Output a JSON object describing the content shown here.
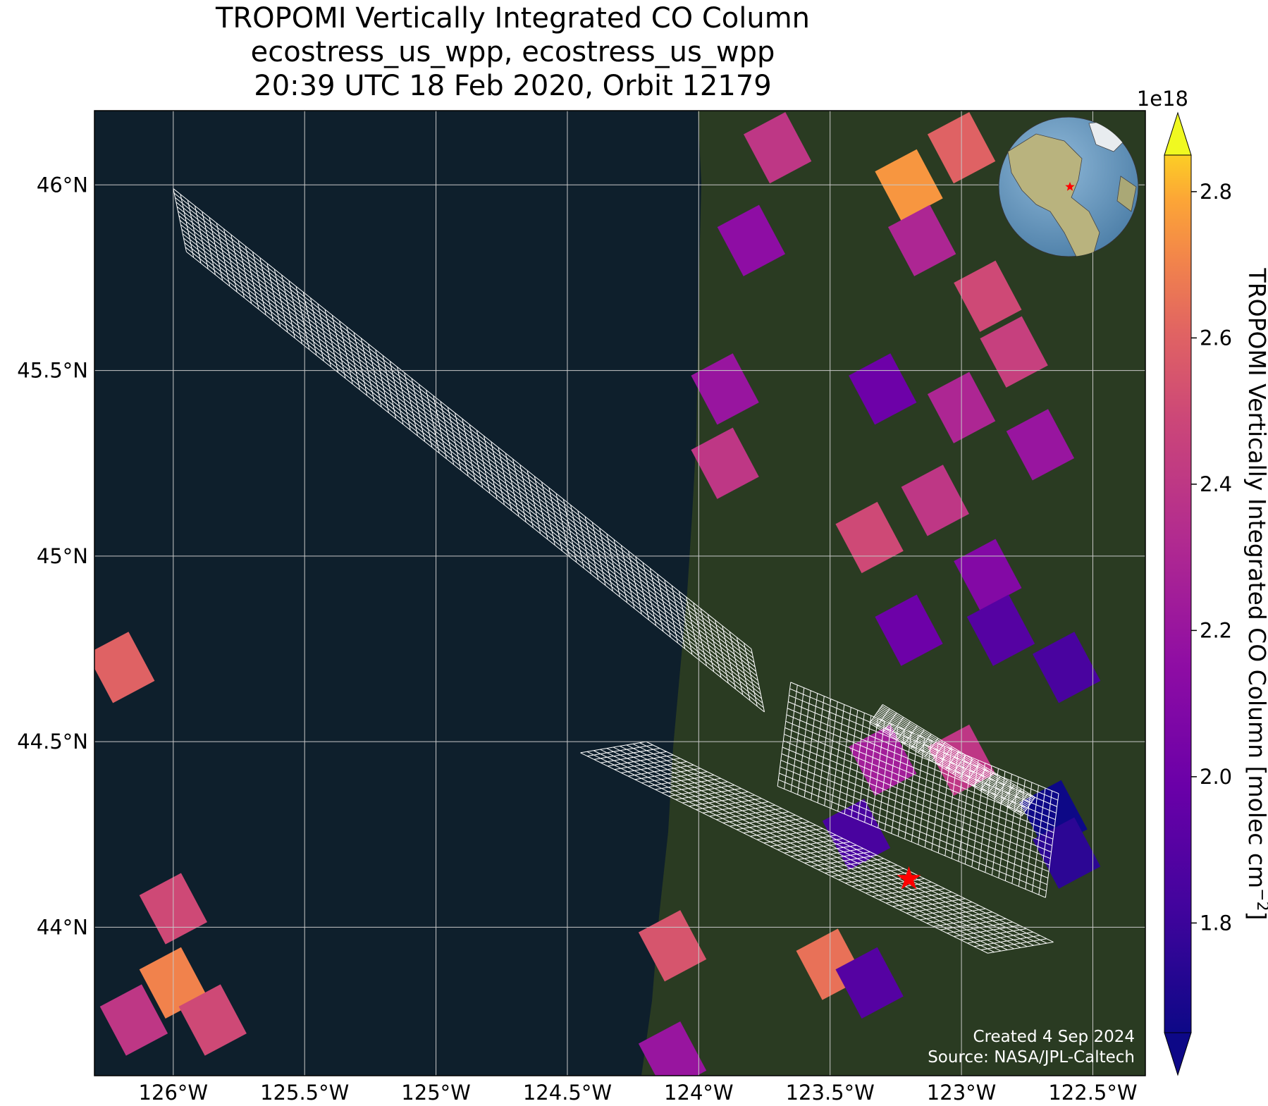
{
  "title": {
    "line1": "TROPOMI Vertically Integrated CO Column",
    "line2": "ecostress_us_wpp, ecostress_us_wpp",
    "line3": "20:39 UTC 18 Feb 2020, Orbit 12179"
  },
  "map": {
    "extent_lon": [
      -126.3,
      -122.3
    ],
    "extent_lat": [
      43.6,
      46.2
    ],
    "lon_ticks": [
      -126,
      -125.5,
      -125,
      -124.5,
      -124,
      -123.5,
      -123,
      -122.5
    ],
    "lon_tick_labels": [
      "126°W",
      "125.5°W",
      "125°W",
      "124.5°W",
      "124°W",
      "123.5°W",
      "123°W",
      "122.5°W"
    ],
    "lat_ticks": [
      46,
      45.5,
      45,
      44.5,
      44
    ],
    "lat_tick_labels": [
      "46°N",
      "45.5°N",
      "45°N",
      "44.5°N",
      "44°N"
    ],
    "site_marker": {
      "lon": -123.2,
      "lat": 44.13,
      "color": "#ff0000"
    },
    "ocean_color": "#0e1f2c",
    "land_color": "#2a3b22",
    "grid_color": "#c8c8c8",
    "footprint_color": "#ffffff",
    "credit_line1": "Created 4 Sep 2024",
    "credit_line2": "Source: NASA/JPL-Caltech",
    "globe_icon": "globe-inset-icon"
  },
  "colorbar": {
    "exponent": "1e18",
    "ticks": [
      1.8,
      2.0,
      2.2,
      2.4,
      2.6,
      2.8
    ],
    "tick_labels": [
      "1.8",
      "2.0",
      "2.2",
      "2.4",
      "2.6",
      "2.8"
    ],
    "range": [
      1.65,
      2.85
    ],
    "colormap": "plasma",
    "label": "TROPOMI Vertically Integrated CO Column [molec cm",
    "label_exponent": "−2",
    "label_close": "]"
  },
  "chart_data": {
    "type": "heatmap",
    "units": "molec cm^-2 (x1e18)",
    "pixels": [
      {
        "lon": -123.0,
        "lat": 46.1,
        "value": 2.6
      },
      {
        "lon": -123.2,
        "lat": 46.0,
        "value": 2.75
      },
      {
        "lon": -123.15,
        "lat": 45.85,
        "value": 2.3
      },
      {
        "lon": -122.9,
        "lat": 45.7,
        "value": 2.5
      },
      {
        "lon": -122.8,
        "lat": 45.55,
        "value": 2.45
      },
      {
        "lon": -123.0,
        "lat": 45.4,
        "value": 2.3
      },
      {
        "lon": -123.3,
        "lat": 45.45,
        "value": 2.0
      },
      {
        "lon": -122.7,
        "lat": 45.3,
        "value": 2.2
      },
      {
        "lon": -123.1,
        "lat": 45.15,
        "value": 2.4
      },
      {
        "lon": -123.35,
        "lat": 45.05,
        "value": 2.5
      },
      {
        "lon": -122.9,
        "lat": 44.95,
        "value": 2.1
      },
      {
        "lon": -123.2,
        "lat": 44.8,
        "value": 2.0
      },
      {
        "lon": -122.85,
        "lat": 44.8,
        "value": 1.9
      },
      {
        "lon": -122.6,
        "lat": 44.7,
        "value": 1.85
      },
      {
        "lon": -123.3,
        "lat": 44.45,
        "value": 2.25
      },
      {
        "lon": -123.0,
        "lat": 44.45,
        "value": 2.4
      },
      {
        "lon": -123.4,
        "lat": 44.25,
        "value": 1.85
      },
      {
        "lon": -122.65,
        "lat": 44.3,
        "value": 1.65
      },
      {
        "lon": -122.6,
        "lat": 44.2,
        "value": 1.75
      },
      {
        "lon": -123.5,
        "lat": 43.9,
        "value": 2.65
      },
      {
        "lon": -123.35,
        "lat": 43.85,
        "value": 1.9
      },
      {
        "lon": -124.1,
        "lat": 43.95,
        "value": 2.55
      },
      {
        "lon": -126.2,
        "lat": 44.7,
        "value": 2.6
      },
      {
        "lon": -126.0,
        "lat": 44.05,
        "value": 2.5
      },
      {
        "lon": -126.0,
        "lat": 43.85,
        "value": 2.7
      },
      {
        "lon": -126.15,
        "lat": 43.75,
        "value": 2.4
      },
      {
        "lon": -125.85,
        "lat": 43.75,
        "value": 2.5
      },
      {
        "lon": -124.1,
        "lat": 43.65,
        "value": 2.2
      },
      {
        "lon": -123.7,
        "lat": 46.1,
        "value": 2.4
      },
      {
        "lon": -123.8,
        "lat": 45.85,
        "value": 2.15
      },
      {
        "lon": -123.9,
        "lat": 45.45,
        "value": 2.2
      },
      {
        "lon": -123.9,
        "lat": 45.25,
        "value": 2.4
      }
    ]
  }
}
